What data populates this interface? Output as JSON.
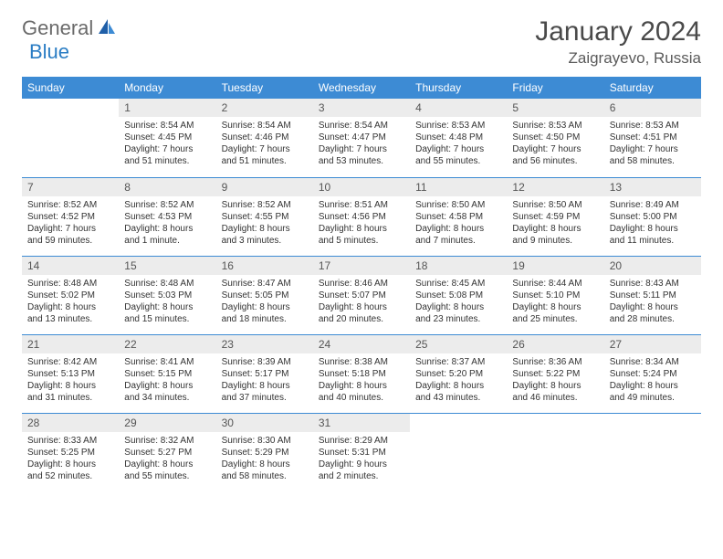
{
  "logo": {
    "text1": "General",
    "text2": "Blue"
  },
  "title": "January 2024",
  "location": "Zaigrayevo, Russia",
  "weekdays": [
    "Sunday",
    "Monday",
    "Tuesday",
    "Wednesday",
    "Thursday",
    "Friday",
    "Saturday"
  ],
  "colors": {
    "header_bg": "#3d8bd4",
    "header_text": "#ffffff",
    "daynum_bg": "#ececec",
    "border": "#3d8bd4",
    "logo_gray": "#6a6a6a",
    "logo_blue": "#2b7dc4"
  },
  "start_weekday": 1,
  "num_days": 31,
  "days": {
    "1": {
      "sunrise": "Sunrise: 8:54 AM",
      "sunset": "Sunset: 4:45 PM",
      "daylight": "Daylight: 7 hours and 51 minutes."
    },
    "2": {
      "sunrise": "Sunrise: 8:54 AM",
      "sunset": "Sunset: 4:46 PM",
      "daylight": "Daylight: 7 hours and 51 minutes."
    },
    "3": {
      "sunrise": "Sunrise: 8:54 AM",
      "sunset": "Sunset: 4:47 PM",
      "daylight": "Daylight: 7 hours and 53 minutes."
    },
    "4": {
      "sunrise": "Sunrise: 8:53 AM",
      "sunset": "Sunset: 4:48 PM",
      "daylight": "Daylight: 7 hours and 55 minutes."
    },
    "5": {
      "sunrise": "Sunrise: 8:53 AM",
      "sunset": "Sunset: 4:50 PM",
      "daylight": "Daylight: 7 hours and 56 minutes."
    },
    "6": {
      "sunrise": "Sunrise: 8:53 AM",
      "sunset": "Sunset: 4:51 PM",
      "daylight": "Daylight: 7 hours and 58 minutes."
    },
    "7": {
      "sunrise": "Sunrise: 8:52 AM",
      "sunset": "Sunset: 4:52 PM",
      "daylight": "Daylight: 7 hours and 59 minutes."
    },
    "8": {
      "sunrise": "Sunrise: 8:52 AM",
      "sunset": "Sunset: 4:53 PM",
      "daylight": "Daylight: 8 hours and 1 minute."
    },
    "9": {
      "sunrise": "Sunrise: 8:52 AM",
      "sunset": "Sunset: 4:55 PM",
      "daylight": "Daylight: 8 hours and 3 minutes."
    },
    "10": {
      "sunrise": "Sunrise: 8:51 AM",
      "sunset": "Sunset: 4:56 PM",
      "daylight": "Daylight: 8 hours and 5 minutes."
    },
    "11": {
      "sunrise": "Sunrise: 8:50 AM",
      "sunset": "Sunset: 4:58 PM",
      "daylight": "Daylight: 8 hours and 7 minutes."
    },
    "12": {
      "sunrise": "Sunrise: 8:50 AM",
      "sunset": "Sunset: 4:59 PM",
      "daylight": "Daylight: 8 hours and 9 minutes."
    },
    "13": {
      "sunrise": "Sunrise: 8:49 AM",
      "sunset": "Sunset: 5:00 PM",
      "daylight": "Daylight: 8 hours and 11 minutes."
    },
    "14": {
      "sunrise": "Sunrise: 8:48 AM",
      "sunset": "Sunset: 5:02 PM",
      "daylight": "Daylight: 8 hours and 13 minutes."
    },
    "15": {
      "sunrise": "Sunrise: 8:48 AM",
      "sunset": "Sunset: 5:03 PM",
      "daylight": "Daylight: 8 hours and 15 minutes."
    },
    "16": {
      "sunrise": "Sunrise: 8:47 AM",
      "sunset": "Sunset: 5:05 PM",
      "daylight": "Daylight: 8 hours and 18 minutes."
    },
    "17": {
      "sunrise": "Sunrise: 8:46 AM",
      "sunset": "Sunset: 5:07 PM",
      "daylight": "Daylight: 8 hours and 20 minutes."
    },
    "18": {
      "sunrise": "Sunrise: 8:45 AM",
      "sunset": "Sunset: 5:08 PM",
      "daylight": "Daylight: 8 hours and 23 minutes."
    },
    "19": {
      "sunrise": "Sunrise: 8:44 AM",
      "sunset": "Sunset: 5:10 PM",
      "daylight": "Daylight: 8 hours and 25 minutes."
    },
    "20": {
      "sunrise": "Sunrise: 8:43 AM",
      "sunset": "Sunset: 5:11 PM",
      "daylight": "Daylight: 8 hours and 28 minutes."
    },
    "21": {
      "sunrise": "Sunrise: 8:42 AM",
      "sunset": "Sunset: 5:13 PM",
      "daylight": "Daylight: 8 hours and 31 minutes."
    },
    "22": {
      "sunrise": "Sunrise: 8:41 AM",
      "sunset": "Sunset: 5:15 PM",
      "daylight": "Daylight: 8 hours and 34 minutes."
    },
    "23": {
      "sunrise": "Sunrise: 8:39 AM",
      "sunset": "Sunset: 5:17 PM",
      "daylight": "Daylight: 8 hours and 37 minutes."
    },
    "24": {
      "sunrise": "Sunrise: 8:38 AM",
      "sunset": "Sunset: 5:18 PM",
      "daylight": "Daylight: 8 hours and 40 minutes."
    },
    "25": {
      "sunrise": "Sunrise: 8:37 AM",
      "sunset": "Sunset: 5:20 PM",
      "daylight": "Daylight: 8 hours and 43 minutes."
    },
    "26": {
      "sunrise": "Sunrise: 8:36 AM",
      "sunset": "Sunset: 5:22 PM",
      "daylight": "Daylight: 8 hours and 46 minutes."
    },
    "27": {
      "sunrise": "Sunrise: 8:34 AM",
      "sunset": "Sunset: 5:24 PM",
      "daylight": "Daylight: 8 hours and 49 minutes."
    },
    "28": {
      "sunrise": "Sunrise: 8:33 AM",
      "sunset": "Sunset: 5:25 PM",
      "daylight": "Daylight: 8 hours and 52 minutes."
    },
    "29": {
      "sunrise": "Sunrise: 8:32 AM",
      "sunset": "Sunset: 5:27 PM",
      "daylight": "Daylight: 8 hours and 55 minutes."
    },
    "30": {
      "sunrise": "Sunrise: 8:30 AM",
      "sunset": "Sunset: 5:29 PM",
      "daylight": "Daylight: 8 hours and 58 minutes."
    },
    "31": {
      "sunrise": "Sunrise: 8:29 AM",
      "sunset": "Sunset: 5:31 PM",
      "daylight": "Daylight: 9 hours and 2 minutes."
    }
  }
}
